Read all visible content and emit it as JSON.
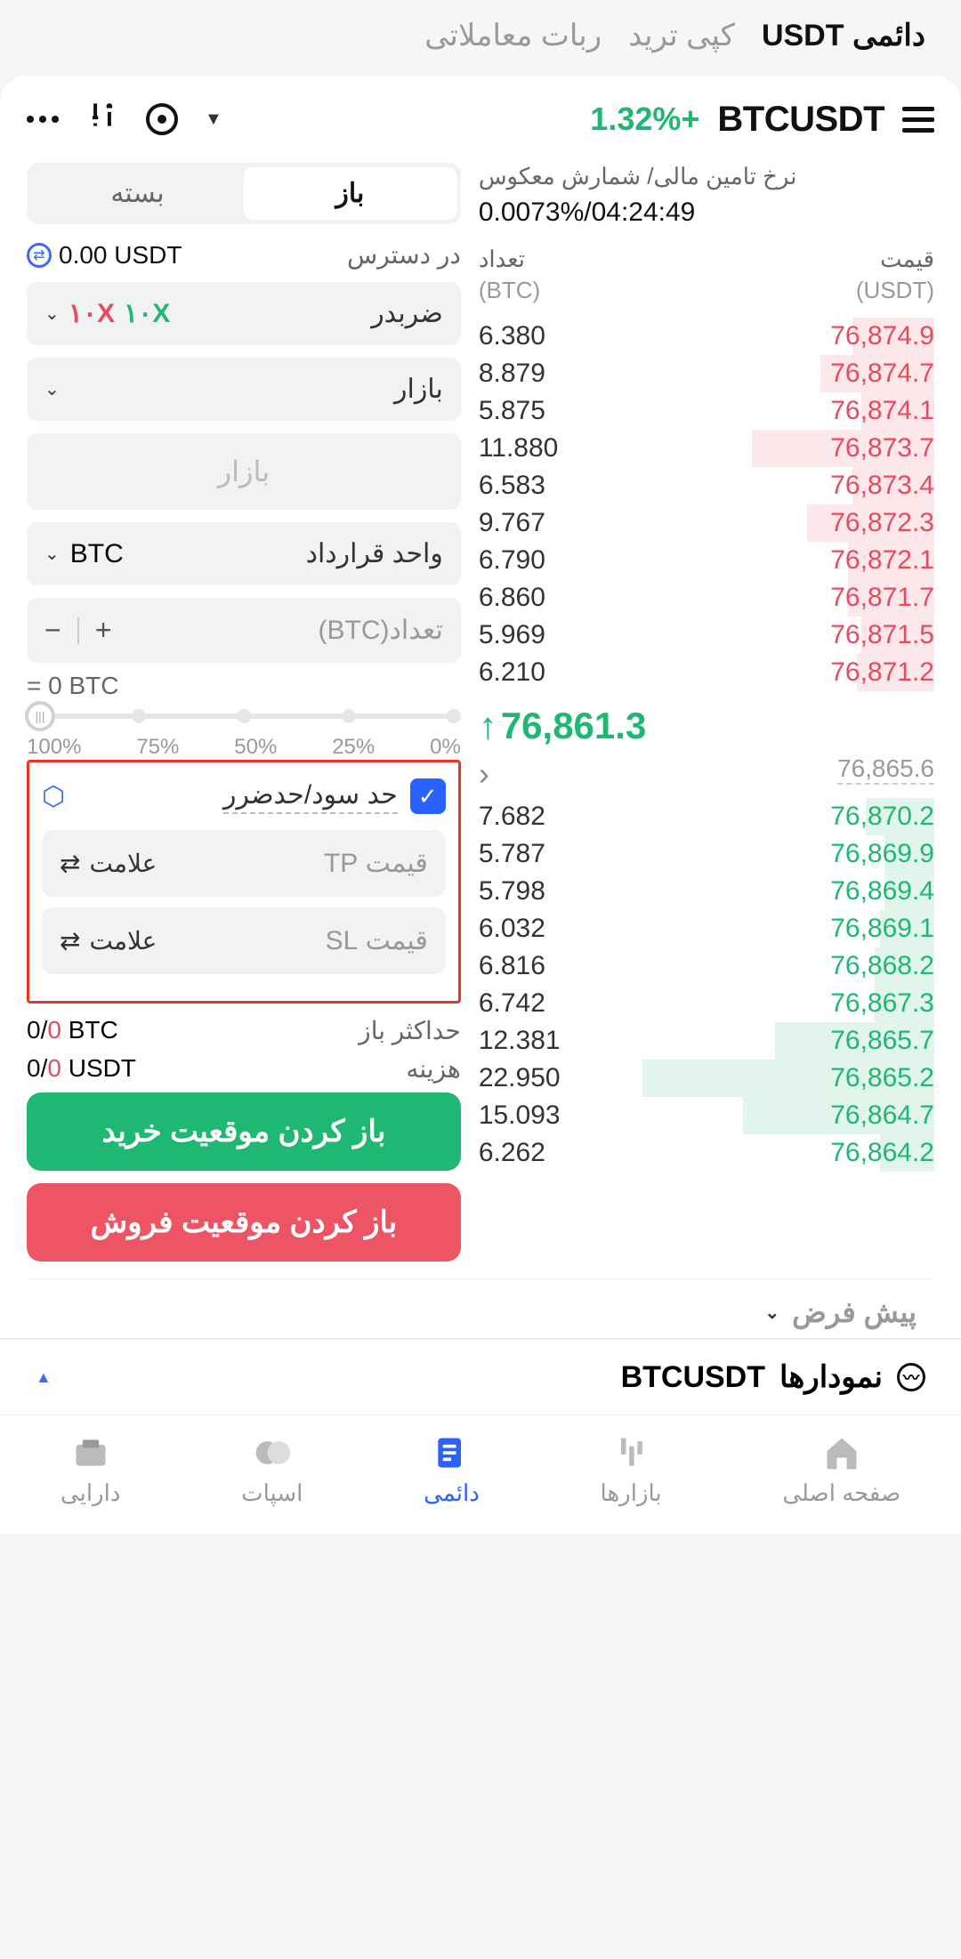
{
  "colors": {
    "green": "#1fb872",
    "red": "#e74c5e",
    "redBtn": "#ed5565",
    "blue": "#2962ff"
  },
  "topTabs": [
    {
      "label": "دائمی USDT",
      "active": true
    },
    {
      "label": "کپی ترید",
      "active": false
    },
    {
      "label": "ربات معاملاتی",
      "active": false
    }
  ],
  "pair": {
    "symbol": "BTCUSDT",
    "change": "+1.32%",
    "changeColor": "#1fb872"
  },
  "funding": {
    "label": "نرخ تامین مالی/ شمارش معکوس",
    "value": "0.0073%/04:24:49"
  },
  "obHeader": {
    "price": "قیمت",
    "qty": "تعداد",
    "priceUnit": "(USDT)",
    "qtyUnit": "(BTC)"
  },
  "asks": [
    {
      "price": "76,874.9",
      "qty": "6.380",
      "depth": 18
    },
    {
      "price": "76,874.7",
      "qty": "8.879",
      "depth": 25
    },
    {
      "price": "76,874.1",
      "qty": "5.875",
      "depth": 16
    },
    {
      "price": "76,873.7",
      "qty": "11.880",
      "depth": 40
    },
    {
      "price": "76,873.4",
      "qty": "6.583",
      "depth": 18
    },
    {
      "price": "76,872.3",
      "qty": "9.767",
      "depth": 28
    },
    {
      "price": "76,872.1",
      "qty": "6.790",
      "depth": 19
    },
    {
      "price": "76,871.7",
      "qty": "6.860",
      "depth": 19
    },
    {
      "price": "76,871.5",
      "qty": "5.969",
      "depth": 16
    },
    {
      "price": "76,871.2",
      "qty": "6.210",
      "depth": 17
    }
  ],
  "mid": {
    "price": "76,861.3",
    "arrow": "↑",
    "color": "#1fb872",
    "sub": "76,865.6"
  },
  "bids": [
    {
      "price": "76,870.2",
      "qty": "7.682",
      "depth": 15
    },
    {
      "price": "76,869.9",
      "qty": "5.787",
      "depth": 11
    },
    {
      "price": "76,869.4",
      "qty": "5.798",
      "depth": 11
    },
    {
      "price": "76,869.1",
      "qty": "6.032",
      "depth": 12
    },
    {
      "price": "76,868.2",
      "qty": "6.816",
      "depth": 13
    },
    {
      "price": "76,867.3",
      "qty": "6.742",
      "depth": 13
    },
    {
      "price": "76,865.7",
      "qty": "12.381",
      "depth": 35
    },
    {
      "price": "76,865.2",
      "qty": "22.950",
      "depth": 64
    },
    {
      "price": "76,864.7",
      "qty": "15.093",
      "depth": 42
    },
    {
      "price": "76,864.2",
      "qty": "6.262",
      "depth": 12
    }
  ],
  "seg": {
    "open": "باز",
    "close": "بسته"
  },
  "avail": {
    "label": "در دسترس",
    "value": "0.00 USDT"
  },
  "leverage": {
    "label": "ضربدر",
    "green": "۱۰X",
    "red": "۱۰X"
  },
  "orderType": {
    "label": "بازار"
  },
  "priceInput": {
    "placeholder": "بازار"
  },
  "unitSel": {
    "label": "واحد قرارداد",
    "value": "BTC"
  },
  "qtyInput": {
    "placeholder": "تعداد(BTC)"
  },
  "eqLine": "= 0 BTC",
  "sliderLabels": [
    "0%",
    "25%",
    "50%",
    "75%",
    "100%"
  ],
  "tpsl": {
    "label": "حد سود/حدضرر",
    "tpPlaceholder": "قیمت TP",
    "slPlaceholder": "قیمت SL",
    "unit": "علامت"
  },
  "maxOpen": {
    "k": "حداکثر باز",
    "v1": "0",
    "v2": "0",
    "unit": "BTC"
  },
  "cost": {
    "k": "هزینه",
    "v1": "0",
    "v2": "0",
    "unit": "USDT"
  },
  "buyBtn": "باز کردن موقعیت خرید",
  "sellBtn": "باز کردن موقعیت فروش",
  "presets": {
    "label": "پیش فرض"
  },
  "chartsBar": {
    "label": "نمودارها",
    "symbol": "BTCUSDT"
  },
  "nav": [
    {
      "label": "صفحه اصلی",
      "icon": "⌂",
      "active": false
    },
    {
      "label": "بازارها",
      "icon": "⁞⁞",
      "active": false
    },
    {
      "label": "دائمی",
      "icon": "▤",
      "active": true
    },
    {
      "label": "اسپات",
      "icon": "◐",
      "active": false
    },
    {
      "label": "دارایی",
      "icon": "▭",
      "active": false
    }
  ]
}
